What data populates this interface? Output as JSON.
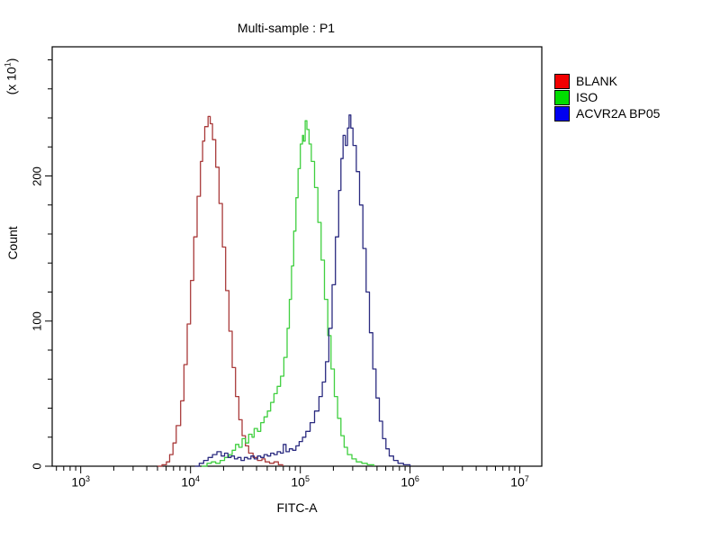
{
  "chart_data": {
    "type": "line",
    "subtype": "flow-cytometry-histogram",
    "title": "Multi-sample : P1",
    "x_axis": {
      "label": "FITC-A",
      "scale": "log",
      "lim_log10": [
        2.74,
        7.2
      ],
      "major_ticks": [
        {
          "base": "10",
          "exp": "3",
          "log10": 3
        },
        {
          "base": "10",
          "exp": "4",
          "log10": 4
        },
        {
          "base": "10",
          "exp": "5",
          "log10": 5
        },
        {
          "base": "10",
          "exp": "6",
          "log10": 6
        },
        {
          "base": "10",
          "exp": "7",
          "log10": 7
        }
      ]
    },
    "y_axis": {
      "label": "Count",
      "unit": {
        "prefix": "(x 10",
        "exp": "1",
        "suffix": ")"
      },
      "lim": [
        0,
        289
      ],
      "minor_step": 20,
      "major_ticks": [
        {
          "label": "0",
          "value": 0
        },
        {
          "label": "100",
          "value": 100
        },
        {
          "label": "200",
          "value": 200
        }
      ]
    },
    "legend": {
      "position": "right-top",
      "items": [
        {
          "label": "BLANK",
          "color": "#f20000"
        },
        {
          "label": "ISO",
          "color": "#00dd00"
        },
        {
          "label": "ACVR2A BP05",
          "color": "#0000f0"
        }
      ]
    },
    "series": [
      {
        "name": "BLANK",
        "color": "#a93a3a",
        "peak": {
          "x_log10": 4.16,
          "count": 241
        },
        "points": [
          [
            3.7,
            0
          ],
          [
            3.74,
            1
          ],
          [
            3.78,
            3
          ],
          [
            3.81,
            8
          ],
          [
            3.84,
            16
          ],
          [
            3.87,
            28
          ],
          [
            3.91,
            45
          ],
          [
            3.94,
            70
          ],
          [
            3.97,
            98
          ],
          [
            4.0,
            128
          ],
          [
            4.03,
            158
          ],
          [
            4.06,
            186
          ],
          [
            4.09,
            210
          ],
          [
            4.11,
            224
          ],
          [
            4.13,
            234
          ],
          [
            4.16,
            241
          ],
          [
            4.18,
            236
          ],
          [
            4.2,
            225
          ],
          [
            4.23,
            206
          ],
          [
            4.26,
            181
          ],
          [
            4.29,
            151
          ],
          [
            4.32,
            121
          ],
          [
            4.35,
            93
          ],
          [
            4.38,
            68
          ],
          [
            4.41,
            48
          ],
          [
            4.44,
            32
          ],
          [
            4.47,
            21
          ],
          [
            4.5,
            14
          ],
          [
            4.53,
            9
          ],
          [
            4.57,
            6
          ],
          [
            4.61,
            4
          ],
          [
            4.65,
            5
          ],
          [
            4.68,
            3
          ],
          [
            4.72,
            2
          ],
          [
            4.76,
            3
          ],
          [
            4.8,
            1
          ],
          [
            4.84,
            0
          ]
        ]
      },
      {
        "name": "ISO",
        "color": "#3fcf3f",
        "peak": {
          "x_log10": 5.045,
          "count": 238
        },
        "points": [
          [
            4.1,
            0
          ],
          [
            4.15,
            2
          ],
          [
            4.19,
            3
          ],
          [
            4.23,
            2
          ],
          [
            4.27,
            4
          ],
          [
            4.31,
            6
          ],
          [
            4.35,
            8
          ],
          [
            4.38,
            11
          ],
          [
            4.41,
            15
          ],
          [
            4.44,
            13
          ],
          [
            4.47,
            19
          ],
          [
            4.5,
            16
          ],
          [
            4.53,
            22
          ],
          [
            4.56,
            20
          ],
          [
            4.58,
            26
          ],
          [
            4.61,
            24
          ],
          [
            4.64,
            30
          ],
          [
            4.67,
            34
          ],
          [
            4.7,
            38
          ],
          [
            4.73,
            44
          ],
          [
            4.76,
            50
          ],
          [
            4.79,
            55
          ],
          [
            4.82,
            62
          ],
          [
            4.85,
            75
          ],
          [
            4.88,
            95
          ],
          [
            4.9,
            115
          ],
          [
            4.92,
            138
          ],
          [
            4.94,
            162
          ],
          [
            4.96,
            185
          ],
          [
            4.98,
            205
          ],
          [
            5.0,
            222
          ],
          [
            5.02,
            228
          ],
          [
            5.03,
            224
          ],
          [
            5.045,
            238
          ],
          [
            5.06,
            232
          ],
          [
            5.08,
            222
          ],
          [
            5.1,
            210
          ],
          [
            5.13,
            192
          ],
          [
            5.16,
            168
          ],
          [
            5.19,
            142
          ],
          [
            5.22,
            115
          ],
          [
            5.25,
            90
          ],
          [
            5.28,
            67
          ],
          [
            5.31,
            48
          ],
          [
            5.34,
            33
          ],
          [
            5.37,
            21
          ],
          [
            5.4,
            13
          ],
          [
            5.43,
            8
          ],
          [
            5.47,
            5
          ],
          [
            5.51,
            3
          ],
          [
            5.56,
            2
          ],
          [
            5.61,
            1
          ],
          [
            5.67,
            0
          ]
        ]
      },
      {
        "name": "ACVR2A BP05",
        "color": "#2b2b80",
        "peak": {
          "x_log10": 5.445,
          "count": 242
        },
        "points": [
          [
            4.04,
            0
          ],
          [
            4.08,
            2
          ],
          [
            4.12,
            4
          ],
          [
            4.16,
            6
          ],
          [
            4.2,
            8
          ],
          [
            4.24,
            10
          ],
          [
            4.28,
            7
          ],
          [
            4.31,
            9
          ],
          [
            4.34,
            6
          ],
          [
            4.37,
            7
          ],
          [
            4.4,
            5
          ],
          [
            4.43,
            6
          ],
          [
            4.46,
            4
          ],
          [
            4.49,
            6
          ],
          [
            4.52,
            5
          ],
          [
            4.55,
            7
          ],
          [
            4.58,
            5
          ],
          [
            4.61,
            7
          ],
          [
            4.64,
            6
          ],
          [
            4.67,
            8
          ],
          [
            4.7,
            7
          ],
          [
            4.73,
            9
          ],
          [
            4.76,
            8
          ],
          [
            4.79,
            10
          ],
          [
            4.82,
            9
          ],
          [
            4.845,
            15
          ],
          [
            4.87,
            10
          ],
          [
            4.9,
            12
          ],
          [
            4.93,
            11
          ],
          [
            4.96,
            14
          ],
          [
            4.99,
            17
          ],
          [
            5.02,
            20
          ],
          [
            5.05,
            24
          ],
          [
            5.09,
            30
          ],
          [
            5.13,
            38
          ],
          [
            5.17,
            48
          ],
          [
            5.2,
            58
          ],
          [
            5.23,
            72
          ],
          [
            5.26,
            95
          ],
          [
            5.29,
            125
          ],
          [
            5.32,
            158
          ],
          [
            5.35,
            190
          ],
          [
            5.37,
            212
          ],
          [
            5.39,
            228
          ],
          [
            5.41,
            221
          ],
          [
            5.43,
            233
          ],
          [
            5.445,
            242
          ],
          [
            5.46,
            233
          ],
          [
            5.48,
            221
          ],
          [
            5.51,
            203
          ],
          [
            5.54,
            180
          ],
          [
            5.57,
            150
          ],
          [
            5.6,
            120
          ],
          [
            5.63,
            92
          ],
          [
            5.66,
            67
          ],
          [
            5.69,
            47
          ],
          [
            5.72,
            31
          ],
          [
            5.75,
            19
          ],
          [
            5.78,
            12
          ],
          [
            5.81,
            7
          ],
          [
            5.85,
            4
          ],
          [
            5.89,
            2
          ],
          [
            5.94,
            1
          ],
          [
            6.0,
            0
          ]
        ]
      }
    ]
  }
}
